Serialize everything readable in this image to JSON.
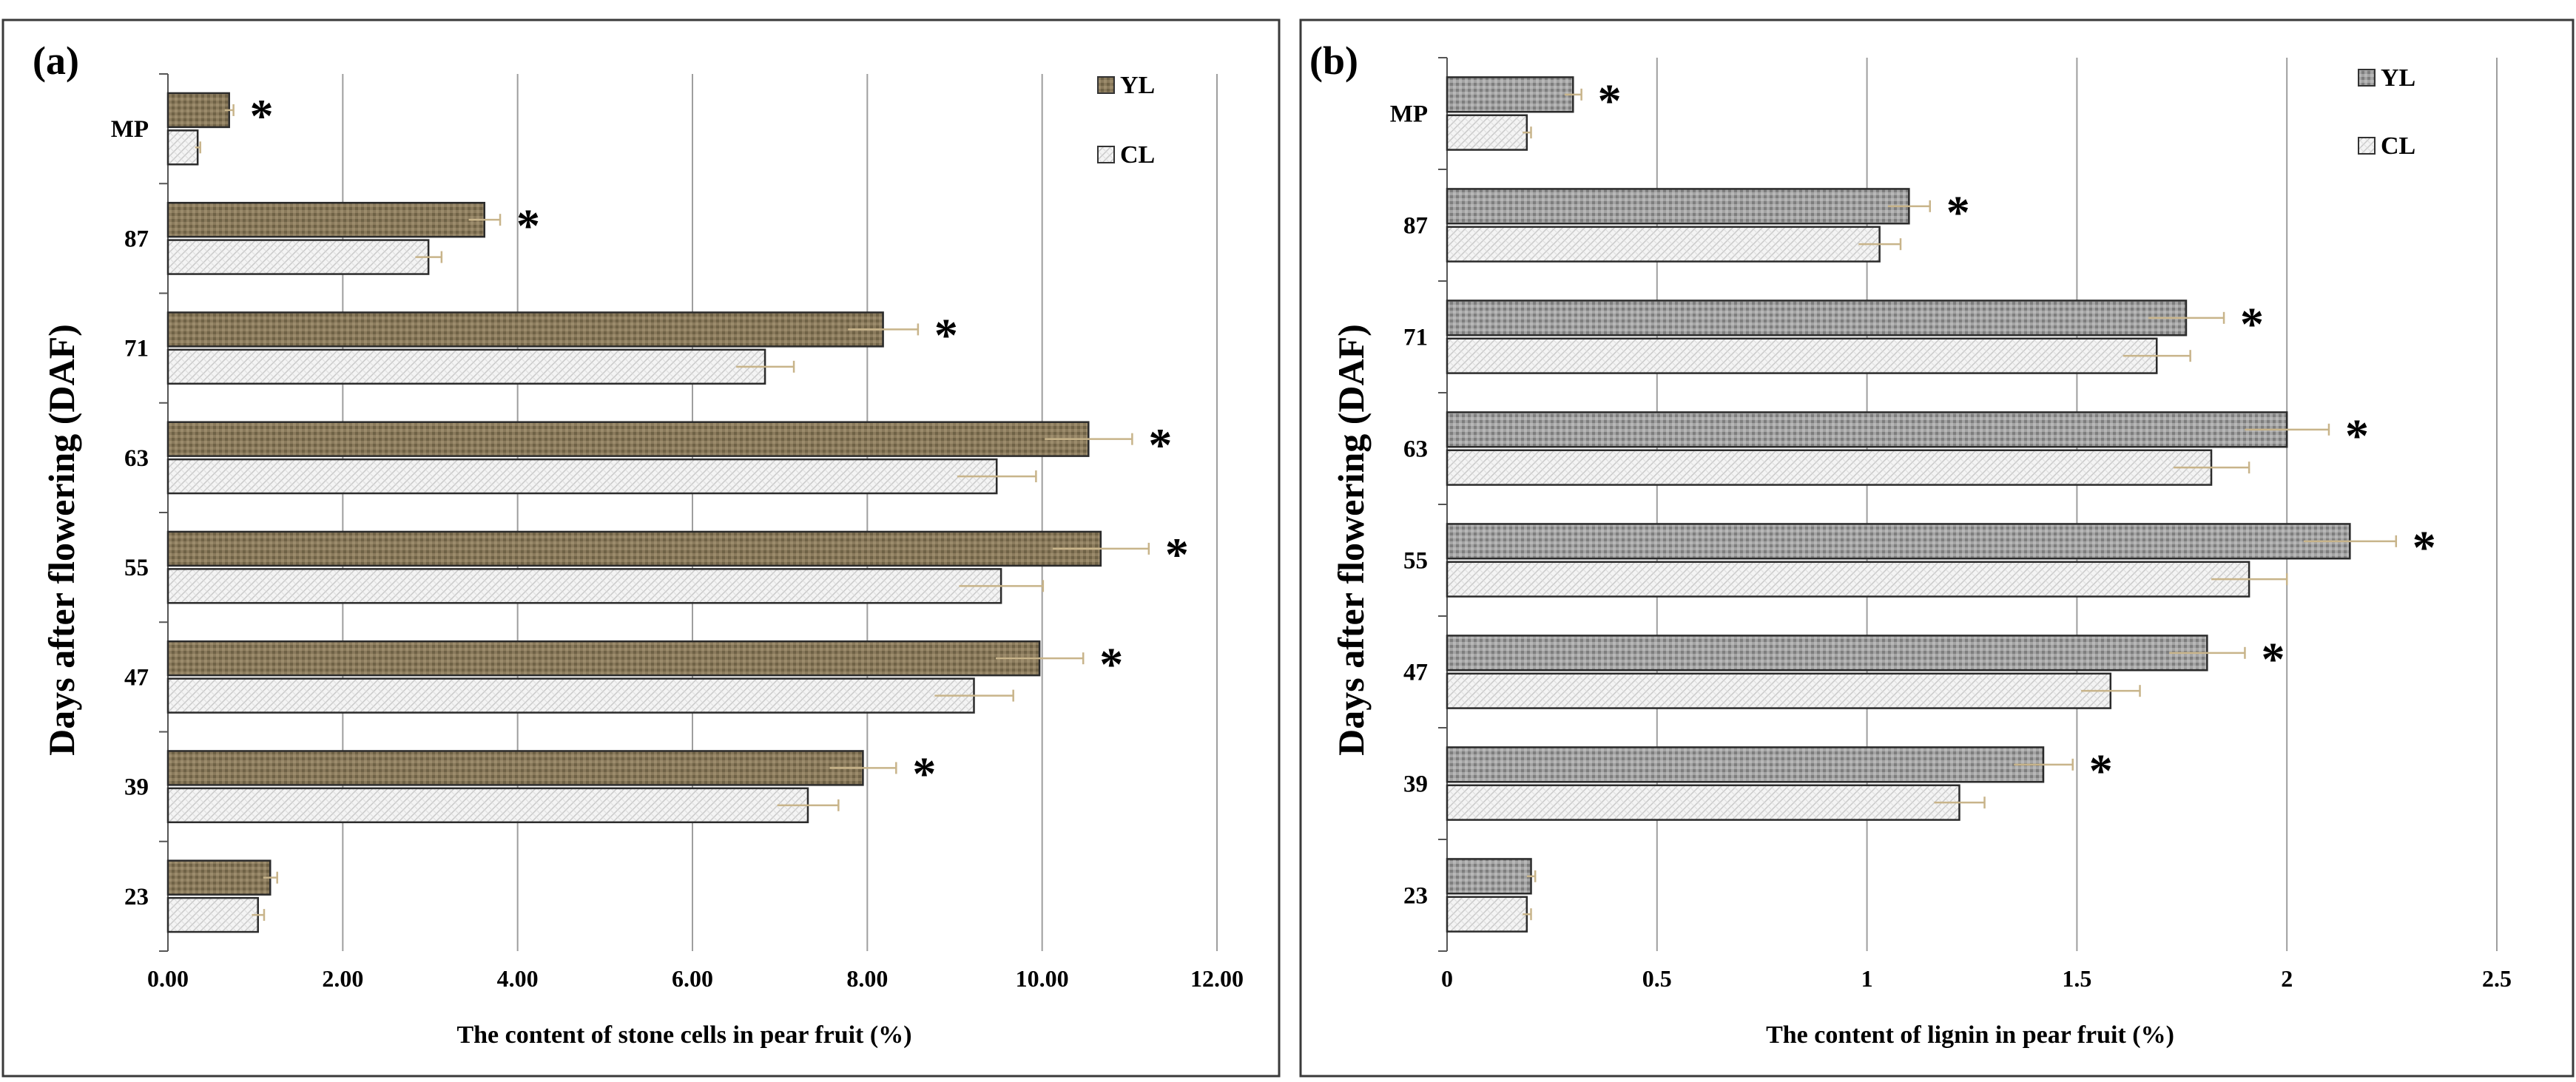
{
  "colors": {
    "yl_a": "#8a7a5c",
    "yl_b": "#9a9a9a",
    "cl": "#f2f2f2",
    "error_bar": "#c8b48a",
    "grid": "#9e9e9e",
    "border": "#3a3a3a"
  },
  "chart_data": [
    {
      "type": "bar",
      "orientation": "horizontal",
      "panel_label": "(a)",
      "categories": [
        "MP",
        "87",
        "71",
        "63",
        "55",
        "47",
        "39",
        "23"
      ],
      "series": [
        {
          "name": "YL",
          "values": [
            0.7,
            3.62,
            8.18,
            10.53,
            10.67,
            9.97,
            7.95,
            1.17
          ],
          "errors": [
            0.05,
            0.18,
            0.4,
            0.5,
            0.55,
            0.5,
            0.38,
            0.08
          ]
        },
        {
          "name": "CL",
          "values": [
            0.34,
            2.98,
            6.83,
            9.48,
            9.53,
            9.22,
            7.32,
            1.03
          ],
          "errors": [
            0.03,
            0.15,
            0.33,
            0.45,
            0.48,
            0.45,
            0.35,
            0.07
          ]
        }
      ],
      "significance": [
        "*",
        "*",
        "*",
        "*",
        "*",
        "*",
        "*",
        ""
      ],
      "xlim": [
        0,
        12
      ],
      "xticks": [
        "0.00",
        "2.00",
        "4.00",
        "6.00",
        "8.00",
        "10.00",
        "12.00"
      ],
      "xlabel": "The content of stone cells in pear fruit (%)",
      "ylabel": "Days after flowering (DAF)",
      "legend": [
        "YL",
        "CL"
      ],
      "legend_position": "top-right",
      "grid": "vertical"
    },
    {
      "type": "bar",
      "orientation": "horizontal",
      "panel_label": "(b)",
      "categories": [
        "MP",
        "87",
        "71",
        "63",
        "55",
        "47",
        "39",
        "23"
      ],
      "series": [
        {
          "name": "YL",
          "values": [
            0.3,
            1.1,
            1.76,
            2.0,
            2.15,
            1.81,
            1.42,
            0.2
          ],
          "errors": [
            0.02,
            0.05,
            0.09,
            0.1,
            0.11,
            0.09,
            0.07,
            0.01
          ]
        },
        {
          "name": "CL",
          "values": [
            0.19,
            1.03,
            1.69,
            1.82,
            1.91,
            1.58,
            1.22,
            0.19
          ],
          "errors": [
            0.01,
            0.05,
            0.08,
            0.09,
            0.09,
            0.07,
            0.06,
            0.01
          ]
        }
      ],
      "significance": [
        "*",
        "*",
        "*",
        "*",
        "*",
        "*",
        "*",
        ""
      ],
      "xlim": [
        0,
        2.5
      ],
      "xticks": [
        "0",
        "0.5",
        "1",
        "1.5",
        "2",
        "2.5"
      ],
      "xlabel": "The content of lignin in pear fruit (%)",
      "ylabel": "Days after flowering (DAF)",
      "legend": [
        "YL",
        "CL"
      ],
      "legend_position": "top-right",
      "grid": "vertical"
    }
  ]
}
